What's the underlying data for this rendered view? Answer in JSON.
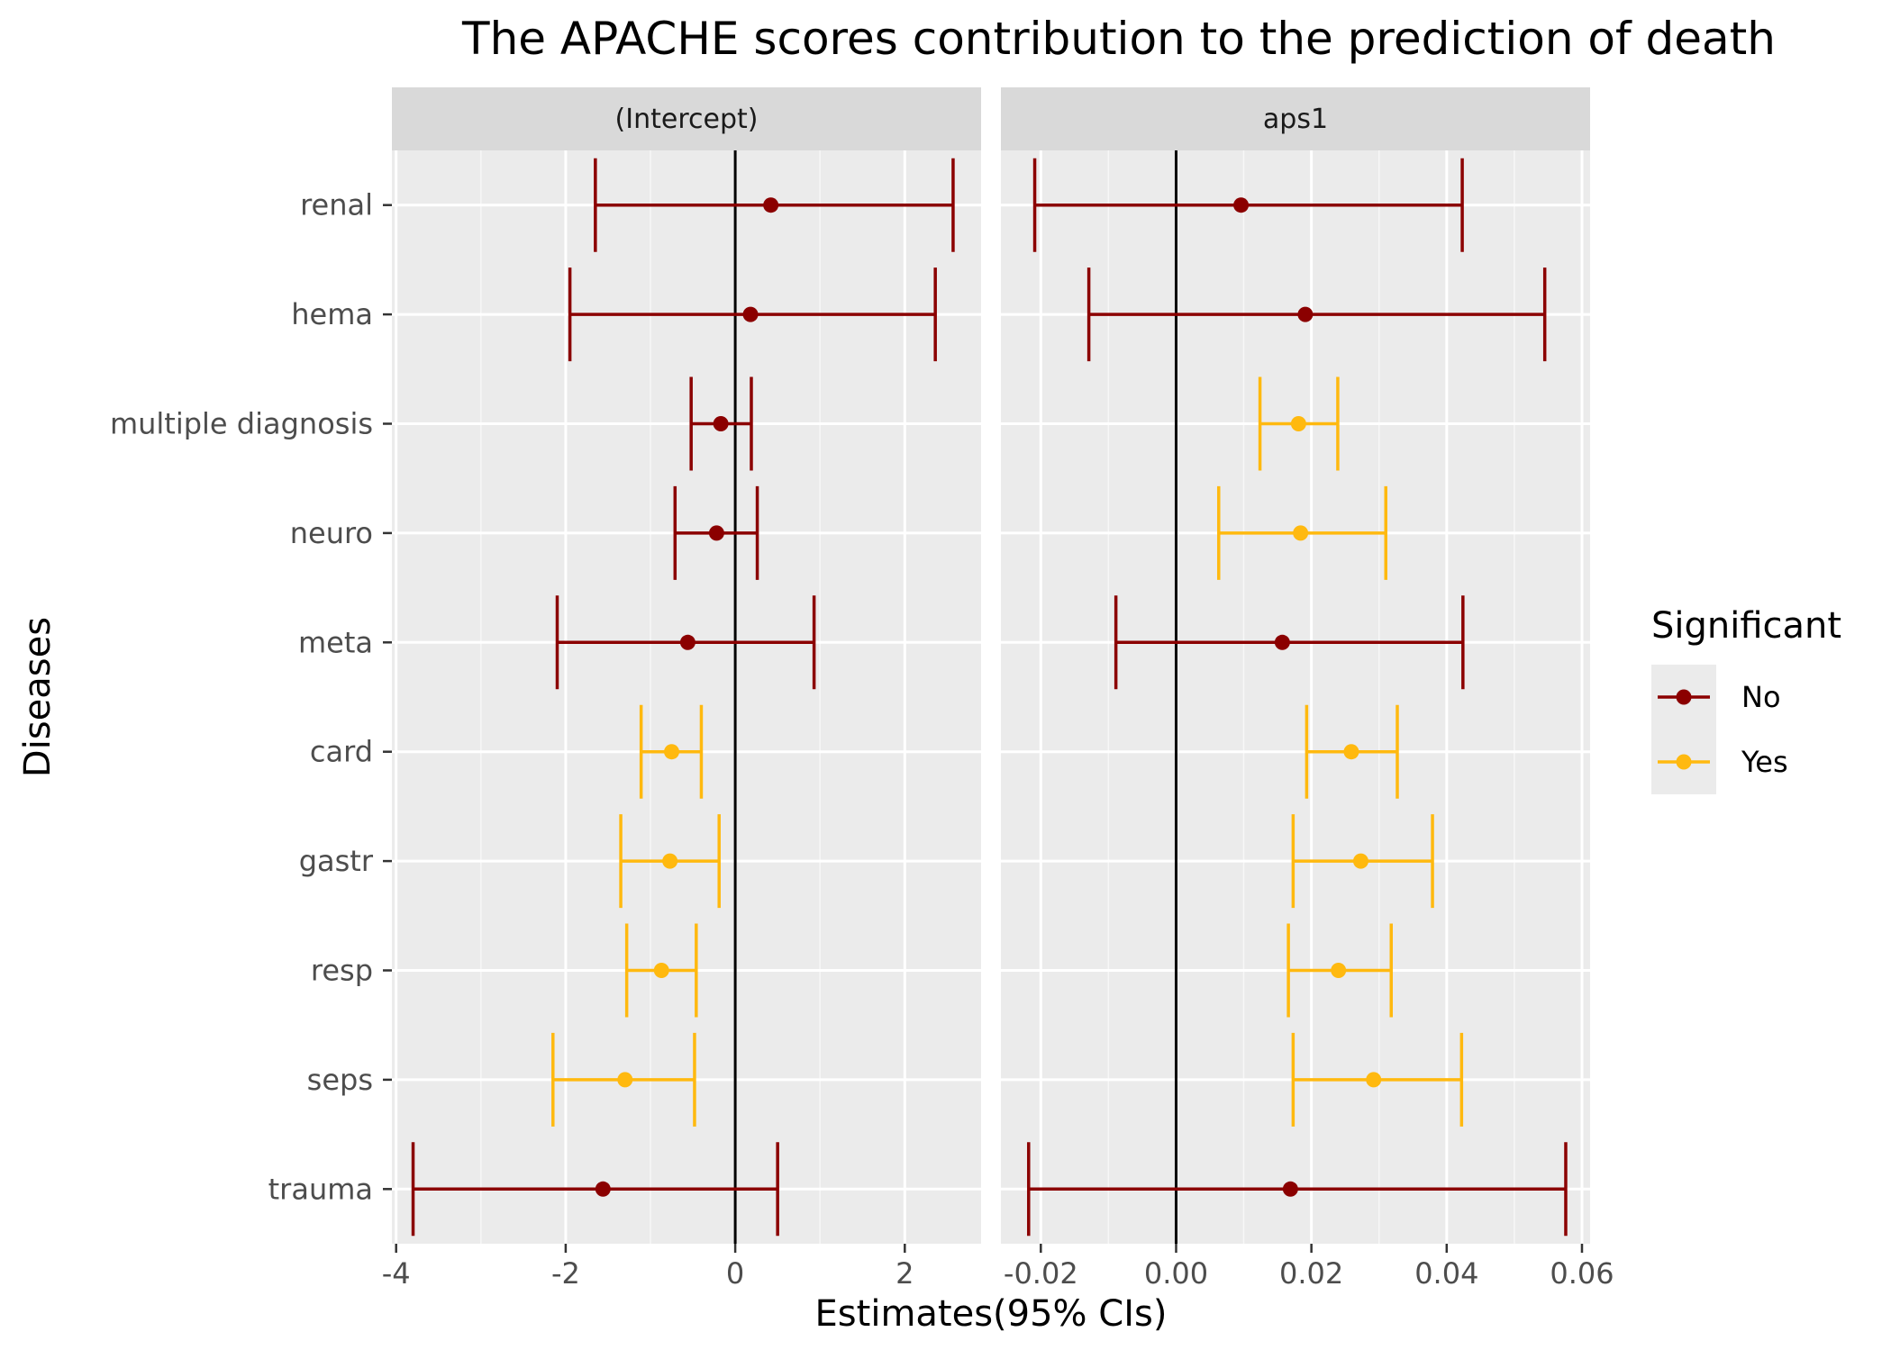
{
  "chart_data": {
    "type": "errorbar-facet",
    "title": "The APACHE scores contribution to the prediction of death",
    "xlabel": "Estimates(95% CIs)",
    "ylabel": "Diseases",
    "categories": [
      "renal",
      "hema",
      "multiple diagnosis",
      "neuro",
      "meta",
      "card",
      "gastr",
      "resp",
      "seps",
      "trauma"
    ],
    "legend": {
      "title": "Significant",
      "placement": "right",
      "entries": [
        {
          "label": "No",
          "color": "#8B0000"
        },
        {
          "label": "Yes",
          "color": "#FFB90F"
        }
      ]
    },
    "facets": [
      {
        "name": "(Intercept)",
        "xlim": [
          -4.05,
          2.9
        ],
        "ticks": [
          -4,
          -2,
          0,
          2
        ],
        "tick_labels": [
          "-4",
          "-2",
          "0",
          "2"
        ],
        "minor_ticks": [
          -3,
          -1,
          1
        ],
        "points": [
          {
            "category": "renal",
            "estimate": 0.42,
            "lower": -1.65,
            "upper": 2.57,
            "significant": "No"
          },
          {
            "category": "hema",
            "estimate": 0.18,
            "lower": -1.95,
            "upper": 2.36,
            "significant": "No"
          },
          {
            "category": "multiple diagnosis",
            "estimate": -0.17,
            "lower": -0.52,
            "upper": 0.19,
            "significant": "No"
          },
          {
            "category": "neuro",
            "estimate": -0.22,
            "lower": -0.71,
            "upper": 0.26,
            "significant": "No"
          },
          {
            "category": "meta",
            "estimate": -0.56,
            "lower": -2.1,
            "upper": 0.93,
            "significant": "No"
          },
          {
            "category": "card",
            "estimate": -0.75,
            "lower": -1.11,
            "upper": -0.4,
            "significant": "Yes"
          },
          {
            "category": "gastr",
            "estimate": -0.77,
            "lower": -1.35,
            "upper": -0.19,
            "significant": "Yes"
          },
          {
            "category": "resp",
            "estimate": -0.87,
            "lower": -1.28,
            "upper": -0.46,
            "significant": "Yes"
          },
          {
            "category": "seps",
            "estimate": -1.3,
            "lower": -2.15,
            "upper": -0.48,
            "significant": "Yes"
          },
          {
            "category": "trauma",
            "estimate": -1.56,
            "lower": -3.8,
            "upper": 0.5,
            "significant": "No"
          }
        ]
      },
      {
        "name": "aps1",
        "xlim": [
          -0.0259,
          0.0612
        ],
        "ticks": [
          -0.02,
          0.0,
          0.02,
          0.04,
          0.06
        ],
        "tick_labels": [
          "-0.02",
          "0.00",
          "0.02",
          "0.04",
          "0.06"
        ],
        "minor_ticks": [
          -0.01,
          0.01,
          0.03,
          0.05
        ],
        "points": [
          {
            "category": "renal",
            "estimate": 0.0096,
            "lower": -0.0209,
            "upper": 0.0423,
            "significant": "No"
          },
          {
            "category": "hema",
            "estimate": 0.0191,
            "lower": -0.0129,
            "upper": 0.0545,
            "significant": "No"
          },
          {
            "category": "multiple diagnosis",
            "estimate": 0.0181,
            "lower": 0.0124,
            "upper": 0.0239,
            "significant": "Yes"
          },
          {
            "category": "neuro",
            "estimate": 0.0184,
            "lower": 0.0063,
            "upper": 0.031,
            "significant": "Yes"
          },
          {
            "category": "meta",
            "estimate": 0.0157,
            "lower": -0.0089,
            "upper": 0.0424,
            "significant": "No"
          },
          {
            "category": "card",
            "estimate": 0.0259,
            "lower": 0.0193,
            "upper": 0.0327,
            "significant": "Yes"
          },
          {
            "category": "gastr",
            "estimate": 0.0273,
            "lower": 0.0173,
            "upper": 0.0379,
            "significant": "Yes"
          },
          {
            "category": "resp",
            "estimate": 0.024,
            "lower": 0.0166,
            "upper": 0.0318,
            "significant": "Yes"
          },
          {
            "category": "seps",
            "estimate": 0.0292,
            "lower": 0.0173,
            "upper": 0.0422,
            "significant": "Yes"
          },
          {
            "category": "trauma",
            "estimate": 0.0169,
            "lower": -0.0218,
            "upper": 0.0576,
            "significant": "No"
          }
        ]
      }
    ]
  }
}
